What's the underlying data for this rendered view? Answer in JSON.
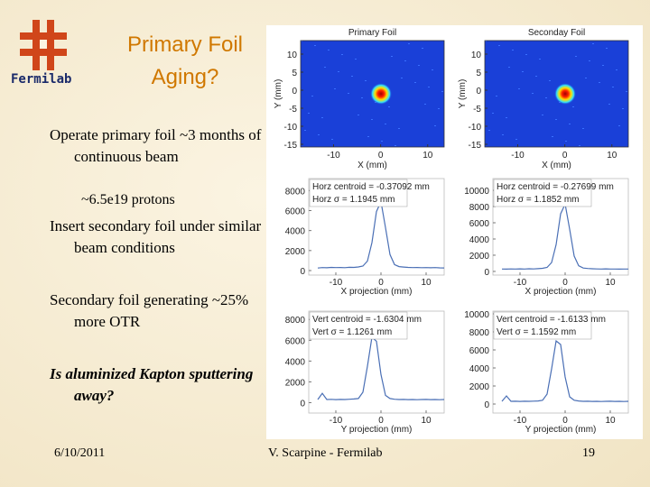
{
  "header": {
    "logo": "Fermilab",
    "title": "Primary Foil Aging?"
  },
  "body": {
    "bullets": [
      "Operate primary foil ~3 months of continuous beam",
      "Insert secondary foil under similar beam conditions",
      "Secondary foil generating ~25% more OTR"
    ],
    "sub_bullet": "~6.5e19 protons",
    "question": "Is aluminized Kapton sputtering away?"
  },
  "figure": {
    "images": [
      {
        "title": "Primary Foil",
        "xlabel": "X (mm)",
        "ylabel": "Y (mm)",
        "xlim": [
          -17,
          13.5
        ],
        "ylim": [
          -15.75,
          13.75
        ],
        "xticks": [
          -10,
          0,
          10
        ],
        "yticks": [
          10,
          5,
          0,
          -5,
          -10,
          -15
        ]
      },
      {
        "title": "Seconday Foil",
        "xlabel": "X (mm)",
        "ylabel": "Y (mm)",
        "xlim": [
          -17,
          13.5
        ],
        "ylim": [
          -15.75,
          13.75
        ],
        "xticks": [
          -10,
          0,
          10
        ],
        "yticks": [
          10,
          5,
          0,
          -5,
          -10,
          -15
        ]
      }
    ],
    "profiles": [
      {
        "type": "line",
        "xlabel": "X projection (mm)",
        "annotations": [
          "Horz centroid = -0.37092 mm",
          "Horz σ = 1.1945 mm"
        ],
        "color": "#4a6fb5",
        "xlim": [
          -16,
          14
        ],
        "ylim": [
          -450,
          9200
        ],
        "xticks": [
          -10,
          0,
          10
        ],
        "yticks": [
          0,
          2000,
          4000,
          6000,
          8000
        ],
        "x": [
          -14,
          -13,
          -12,
          -11,
          -10,
          -9,
          -8,
          -7,
          -6,
          -5,
          -4,
          -3,
          -2,
          -1,
          0,
          1,
          2,
          3,
          4,
          5,
          6,
          7,
          8,
          9,
          10,
          11,
          12,
          13,
          14
        ],
        "values": [
          250,
          300,
          280,
          320,
          300,
          310,
          290,
          330,
          320,
          360,
          450,
          950,
          2800,
          5900,
          6900,
          4300,
          1600,
          600,
          400,
          350,
          320,
          300,
          310,
          290,
          300,
          280,
          300,
          270,
          260
        ]
      },
      {
        "type": "line",
        "xlabel": "X projection (mm)",
        "annotations": [
          "Horz centroid = -0.27699 mm",
          "Horz σ = 1.1852 mm"
        ],
        "color": "#4a6fb5",
        "xlim": [
          -16,
          14
        ],
        "ylim": [
          -450,
          11450
        ],
        "xticks": [
          -10,
          0,
          10
        ],
        "yticks": [
          0,
          2000,
          4000,
          6000,
          8000,
          10000
        ],
        "x": [
          -14,
          -13,
          -12,
          -11,
          -10,
          -9,
          -8,
          -7,
          -6,
          -5,
          -4,
          -3,
          -2,
          -1,
          0,
          1,
          2,
          3,
          4,
          5,
          6,
          7,
          8,
          9,
          10,
          11,
          12,
          13,
          14
        ],
        "values": [
          300,
          280,
          310,
          290,
          320,
          300,
          330,
          310,
          340,
          380,
          500,
          1100,
          3300,
          7100,
          8300,
          5200,
          1900,
          700,
          420,
          360,
          330,
          310,
          300,
          320,
          290,
          300,
          280,
          300,
          290
        ]
      },
      {
        "type": "line",
        "xlabel": "Y projection (mm)",
        "annotations": [
          "Vert centroid = -1.6304 mm",
          "Vert σ = 1.1261 mm"
        ],
        "color": "#4a6fb5",
        "xlim": [
          -16,
          14
        ],
        "ylim": [
          -1000,
          8800
        ],
        "xticks": [
          -10,
          0,
          10
        ],
        "yticks": [
          0,
          2000,
          4000,
          6000,
          8000
        ],
        "x": [
          -14,
          -13,
          -12,
          -11,
          -10,
          -9,
          -8,
          -7,
          -6,
          -5,
          -4,
          -3,
          -2,
          -1,
          0,
          1,
          2,
          3,
          4,
          5,
          6,
          7,
          8,
          9,
          10,
          11,
          12,
          13,
          14
        ],
        "values": [
          300,
          900,
          300,
          320,
          290,
          310,
          300,
          330,
          350,
          400,
          1000,
          3500,
          6300,
          5900,
          2700,
          700,
          400,
          330,
          300,
          310,
          290,
          300,
          280,
          300,
          310,
          290,
          300,
          280,
          300
        ]
      },
      {
        "type": "line",
        "xlabel": "Y projection (mm)",
        "annotations": [
          "Vert centroid = -1.6133 mm",
          "Vert σ = 1.1592 mm"
        ],
        "color": "#4a6fb5",
        "xlim": [
          -16,
          14
        ],
        "ylim": [
          -1000,
          10300
        ],
        "xticks": [
          -10,
          0,
          10
        ],
        "yticks": [
          0,
          2000,
          4000,
          6000,
          8000,
          10000
        ],
        "x": [
          -14,
          -13,
          -12,
          -11,
          -10,
          -9,
          -8,
          -7,
          -6,
          -5,
          -4,
          -3,
          -2,
          -1,
          0,
          1,
          2,
          3,
          4,
          5,
          6,
          7,
          8,
          9,
          10,
          11,
          12,
          13,
          14
        ],
        "values": [
          300,
          900,
          300,
          310,
          290,
          310,
          300,
          320,
          340,
          420,
          1100,
          3900,
          7000,
          6600,
          3000,
          800,
          420,
          340,
          300,
          310,
          290,
          300,
          280,
          300,
          310,
          290,
          300,
          280,
          300
        ]
      }
    ]
  },
  "footer": {
    "date": "6/10/2011",
    "author": "V. Scarpine - Fermilab",
    "page": "19"
  }
}
